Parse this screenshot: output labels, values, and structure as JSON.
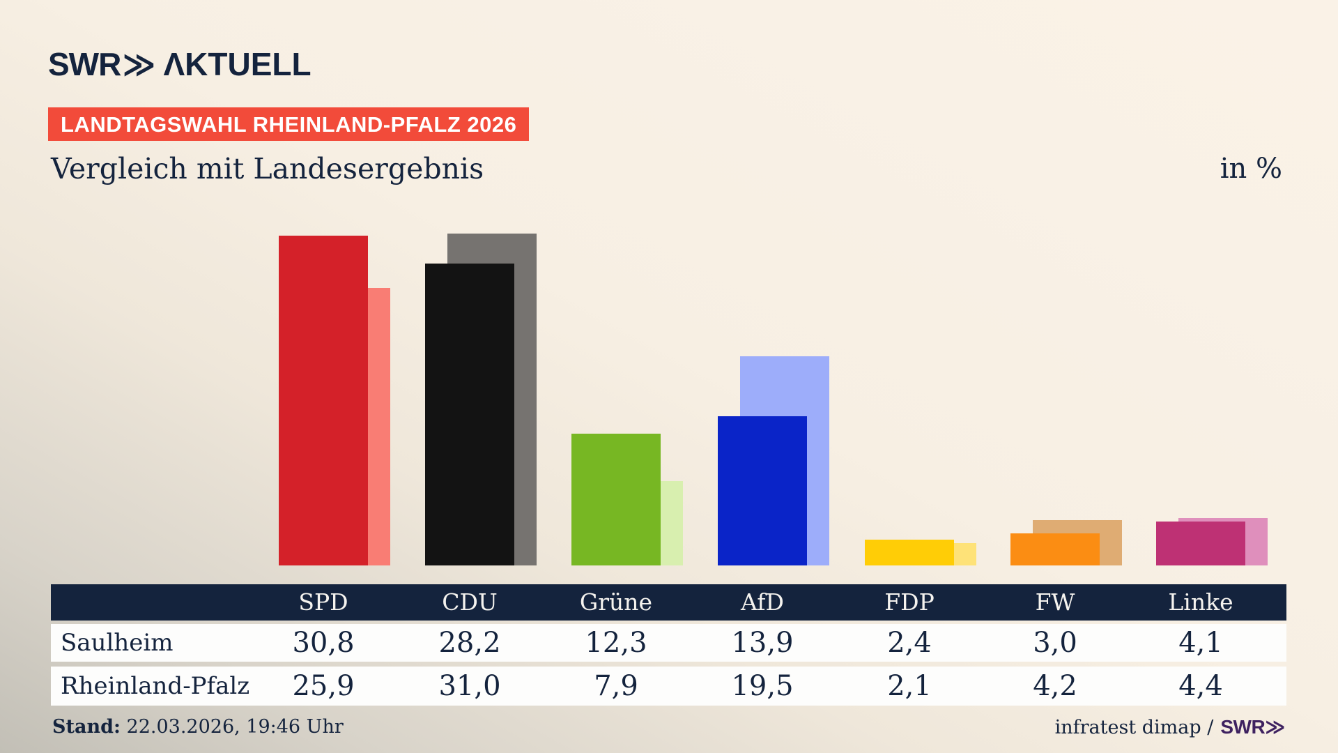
{
  "header": {
    "logo_swr": "SWR",
    "logo_chevrons": "≫",
    "logo_aktuell": "ΛKTUELL",
    "badge": "LANDTAGSWAHL RHEINLAND-PFALZ 2026",
    "title": "Vergleich mit Landesergebnis",
    "unit_label": "in %"
  },
  "chart_data": {
    "type": "bar",
    "categories": [
      "SPD",
      "CDU",
      "Grüne",
      "AfD",
      "FDP",
      "FW",
      "Linke"
    ],
    "series": [
      {
        "name": "Saulheim",
        "values": [
          30.8,
          28.2,
          12.3,
          13.9,
          2.4,
          3.0,
          4.1
        ]
      },
      {
        "name": "Rheinland-Pfalz",
        "values": [
          25.9,
          31.0,
          7.9,
          19.5,
          2.1,
          4.2,
          4.4
        ]
      }
    ],
    "title": "Vergleich mit Landesergebnis",
    "xlabel": "",
    "ylabel": "in %",
    "ylim": [
      0,
      33
    ],
    "grid": false,
    "legend_position": "table-rows-below",
    "axes_hidden": true,
    "note": "foreground solid bar = Saulheim, offset lighter bar behind = Rheinland-Pfalz",
    "party_colors": {
      "SPD": {
        "solid": "#d42129",
        "light": "#f97d74"
      },
      "CDU": {
        "solid": "#131313",
        "light": "#767370"
      },
      "Grüne": {
        "solid": "#77b723",
        "light": "#d8efaf"
      },
      "AfD": {
        "solid": "#0a24c8",
        "light": "#9dadfa"
      },
      "FDP": {
        "solid": "#ffcd06",
        "light": "#fee278"
      },
      "FW": {
        "solid": "#fb8d13",
        "light": "#dfac73"
      },
      "Linke": {
        "solid": "#be3174",
        "light": "#df8fbc"
      }
    }
  },
  "table": {
    "column_headers": [
      "SPD",
      "CDU",
      "Grüne",
      "AfD",
      "FDP",
      "FW",
      "Linke"
    ],
    "rows": [
      {
        "label": "Saulheim",
        "values": [
          "30,8",
          "28,2",
          "12,3",
          "13,9",
          "2,4",
          "3,0",
          "4,1"
        ]
      },
      {
        "label": "Rheinland-Pfalz",
        "values": [
          "25,9",
          "31,0",
          "7,9",
          "19,5",
          "2,1",
          "4,2",
          "4,4"
        ]
      }
    ]
  },
  "footer": {
    "stand_label": "Stand:",
    "stand_value": " 22.03.2026, 19:46 Uhr",
    "source_text": "infratest dimap /",
    "source_brand": "SWR≫"
  },
  "colors": {
    "navy": "#14233d",
    "badge_red": "#f24b3a",
    "background_cream": "#f8f0e4",
    "background_gray_corner": "#c2bfb6",
    "table_row_white": "#fdfdfc",
    "brand_purple": "#3e2160"
  }
}
